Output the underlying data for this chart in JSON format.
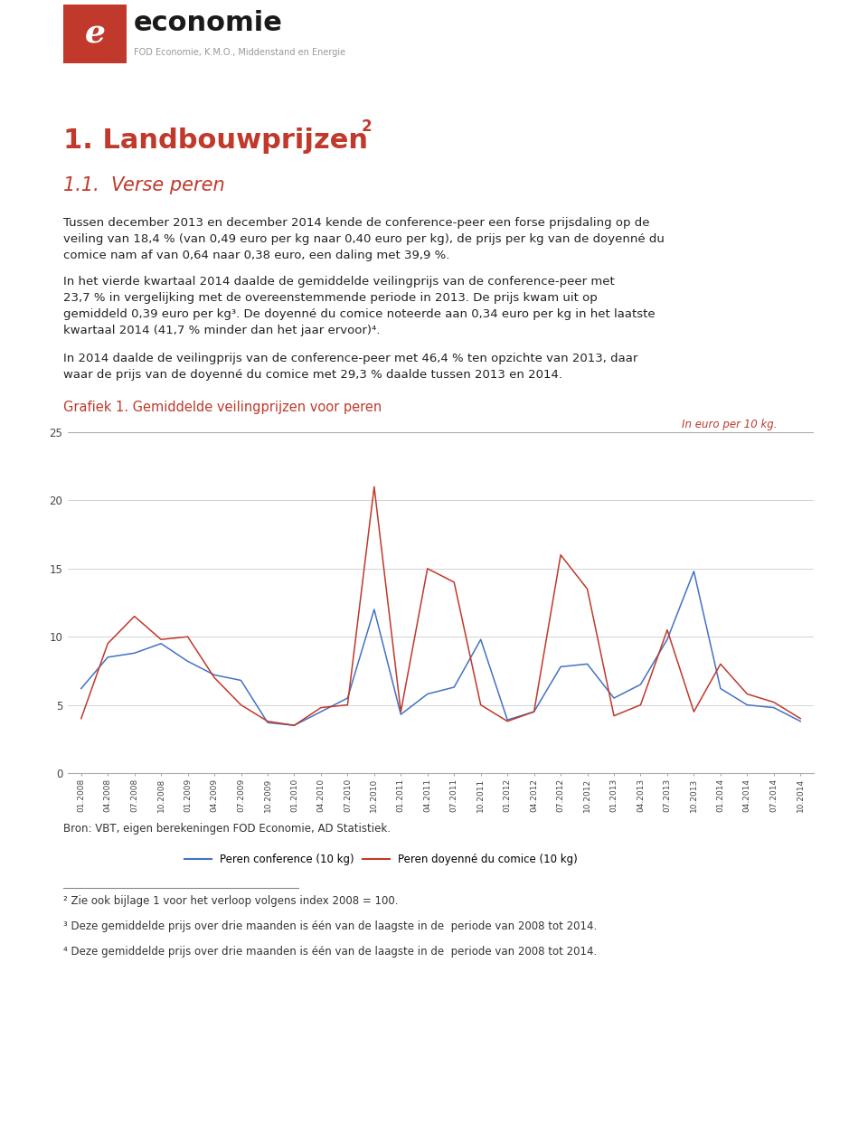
{
  "title_main": "1. Landbouwprijzen",
  "title_sup": "2",
  "title_sub": "1.1. Verse peren",
  "graf_title": "Grafiek 1. Gemiddelde veilingprijzen voor peren",
  "graf_subtitle": "In euro per 10 kg.",
  "bron": "Bron: VBT, eigen berekeningen FOD Economie, AD Statistiek.",
  "legend1": "Peren conference (10 kg)",
  "legend2": "Peren doyenné du comice (10 kg)",
  "body_text1": "Tussen december 2013 en december 2014 kende de conference-peer een forse prijsdaling op de\nveiling van 18,4 % (van 0,49 euro per kg naar 0,40 euro per kg), de prijs per kg van de doyenné du\ncomice nam af van 0,64 naar 0,38 euro, een daling met 39,9 %.",
  "body_text2": "In het vierde kwartaal 2014 daalde de gemiddelde veilingprijs van de conference-peer met\n23,7 % in vergelijking met de overeenstemmende periode in 2013. De prijs kwam uit op\ngemiddeld 0,39 euro per kg³. De doyenné du comice noteerde aan 0,34 euro per kg in het laatste\nkwartaal 2014 (41,7 % minder dan het jaar ervoor)⁴.",
  "body_text3": "In 2014 daalde de veilingprijs van de conference-peer met 46,4 % ten opzichte van 2013, daar\nwaar de prijs van de doyenné du comice met 29,3 % daalde tussen 2013 en 2014.",
  "footnote2": "² Zie ook bijlage 1 voor het verloop volgens index 2008 = 100.",
  "footnote3": "³ Deze gemiddelde prijs over drie maanden is één van de laagste in de  periode van 2008 tot 2014.",
  "footnote4": "⁴ Deze gemiddelde prijs over drie maanden is één van de laagste in de  periode van 2008 tot 2014.",
  "color_red": "#c0392b",
  "color_line_blue": "#4472C4",
  "color_line_red": "#c0392b",
  "color_heading": "#c0392b",
  "color_graf_title": "#c0392b",
  "color_orange_bar": "#e8792a",
  "logo_subtitle": "FOD Economie, K.M.O., Middenstand en Energie",
  "ylim_min": 0,
  "ylim_max": 25,
  "yticks": [
    0,
    5,
    10,
    15,
    20,
    25
  ],
  "x_labels": [
    "01.2008",
    "04.2008",
    "07.2008",
    "10.2008",
    "01.2009",
    "04.2009",
    "07.2009",
    "10.2009",
    "01.2010",
    "04.2010",
    "07.2010",
    "10.2010",
    "01.2011",
    "04.2011",
    "07.2011",
    "10.2011",
    "01.2012",
    "04.2012",
    "07.2012",
    "10.2012",
    "01.2013",
    "04.2013",
    "07.2013",
    "10.2013",
    "01.2014",
    "04.2014",
    "07.2014",
    "10.2014"
  ],
  "conference": [
    6.2,
    8.5,
    8.8,
    9.5,
    8.2,
    7.2,
    6.8,
    3.7,
    3.5,
    4.5,
    5.5,
    12.0,
    4.3,
    5.8,
    6.3,
    9.8,
    3.9,
    4.5,
    7.8,
    8.0,
    5.5,
    6.5,
    9.8,
    14.8,
    6.2,
    5.0,
    4.8,
    3.8
  ],
  "comice": [
    4.0,
    9.5,
    11.5,
    9.8,
    10.0,
    7.0,
    5.0,
    3.8,
    3.5,
    4.8,
    5.0,
    21.0,
    4.5,
    15.0,
    14.0,
    5.0,
    3.8,
    4.5,
    16.0,
    13.5,
    4.2,
    5.0,
    10.5,
    4.5,
    8.0,
    5.8,
    5.2,
    4.0
  ]
}
